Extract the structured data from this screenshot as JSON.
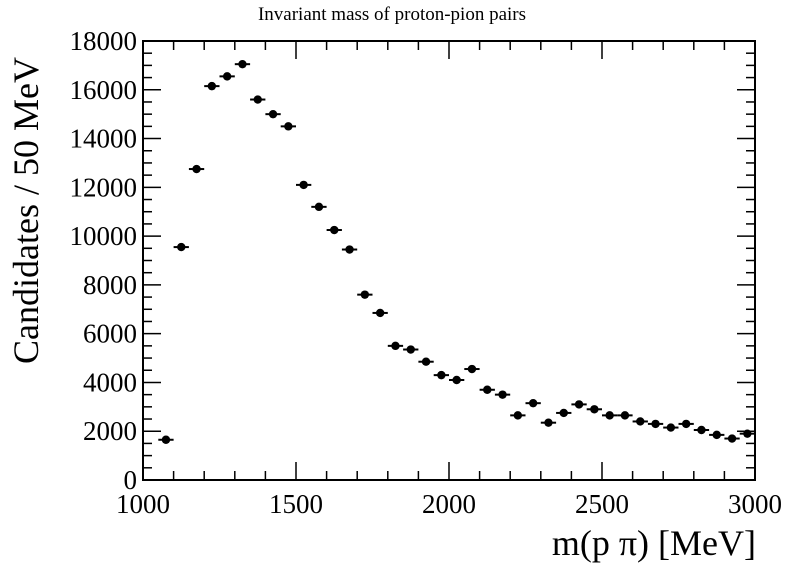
{
  "chart_data": {
    "type": "scatter",
    "title": "Invariant mass of proton-pion pairs",
    "xlabel": "m(p π) [MeV]",
    "ylabel": "Candidates / 50 MeV",
    "xlim": [
      1000,
      3000
    ],
    "ylim": [
      0,
      18000
    ],
    "x_ticks": [
      "1000",
      "1500",
      "2000",
      "2500",
      "3000"
    ],
    "y_ticks": [
      "0",
      "2000",
      "4000",
      "6000",
      "8000",
      "10000",
      "12000",
      "14000",
      "16000",
      "18000"
    ],
    "bin_width": 50,
    "x": [
      1075,
      1125,
      1175,
      1225,
      1275,
      1325,
      1375,
      1425,
      1475,
      1525,
      1575,
      1625,
      1675,
      1725,
      1775,
      1825,
      1875,
      1925,
      1975,
      2025,
      2075,
      2125,
      2175,
      2225,
      2275,
      2325,
      2375,
      2425,
      2475,
      2525,
      2575,
      2625,
      2675,
      2725,
      2775,
      2825,
      2875,
      2925,
      2975
    ],
    "y": [
      1650,
      9550,
      12750,
      16150,
      16550,
      17050,
      15600,
      15000,
      14500,
      12100,
      11200,
      10250,
      9450,
      7600,
      6850,
      5500,
      5350,
      4850,
      4300,
      4100,
      4550,
      3700,
      3500,
      2650,
      3150,
      2350,
      2750,
      3100,
      2900,
      2650,
      2650,
      2400,
      2300,
      2150,
      2300,
      2050,
      1850,
      1700,
      1900
    ],
    "grid": false,
    "legend": "none",
    "marker_color": "#000000"
  }
}
